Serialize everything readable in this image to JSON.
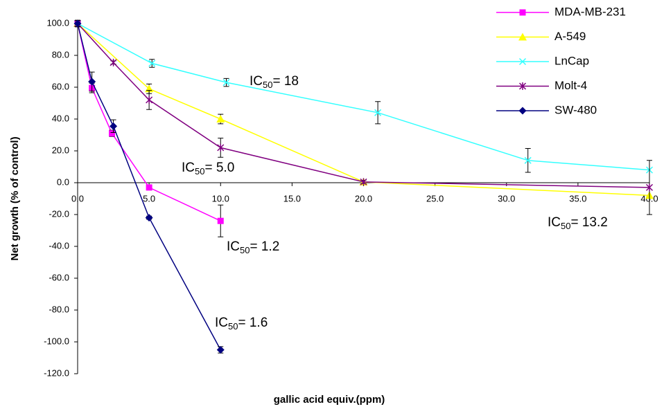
{
  "chart_data": {
    "type": "line",
    "x_label": "gallic acid equiv.(ppm)",
    "y_label": "Net growth (% of control)",
    "xlim": [
      0,
      40
    ],
    "ylim": [
      -120,
      100
    ],
    "xticks": [
      {
        "value": 0,
        "label": "0.0"
      },
      {
        "value": 5,
        "label": "5.0"
      },
      {
        "value": 10,
        "label": "10.0"
      },
      {
        "value": 15,
        "label": "15.0"
      },
      {
        "value": 20,
        "label": "20.0"
      },
      {
        "value": 25,
        "label": "25.0"
      },
      {
        "value": 30,
        "label": "30.0"
      },
      {
        "value": 35,
        "label": "35.0"
      },
      {
        "value": 40,
        "label": "40.0"
      }
    ],
    "yticks": [
      {
        "value": 100,
        "label": "100.0"
      },
      {
        "value": 80,
        "label": "80.0"
      },
      {
        "value": 60,
        "label": "60.0"
      },
      {
        "value": 40,
        "label": "40.0"
      },
      {
        "value": 20,
        "label": "20.0"
      },
      {
        "value": 0,
        "label": "0.0"
      },
      {
        "value": -20,
        "label": "-20.0"
      },
      {
        "value": -40,
        "label": "-40.0"
      },
      {
        "value": -60,
        "label": "-60.0"
      },
      {
        "value": -80,
        "label": "-80.0"
      },
      {
        "value": -100,
        "label": "-100.0"
      },
      {
        "value": -120,
        "label": "-120.0"
      }
    ],
    "grid": false,
    "legend": "top-right",
    "series": [
      {
        "name": "MDA-MB-231",
        "color": "#ff00ff",
        "marker": "square",
        "x": [
          0,
          1,
          2.4,
          5,
          10
        ],
        "values": [
          100,
          59.5,
          31,
          -3,
          -24
        ],
        "errors": [
          1,
          3,
          2,
          1,
          10
        ]
      },
      {
        "name": "A-549",
        "color": "#ffff00",
        "marker": "triangle",
        "x": [
          0,
          5,
          10,
          20,
          40
        ],
        "values": [
          100,
          59,
          40,
          0.5,
          -8
        ],
        "errors": [
          2,
          3,
          3,
          1,
          null
        ]
      },
      {
        "name": "LnCap",
        "color": "#33ffff",
        "marker": "x",
        "x": [
          0,
          5.2,
          10.4,
          21,
          31.5,
          40
        ],
        "values": [
          100,
          75,
          63,
          44,
          14,
          8
        ],
        "errors": [
          2,
          2.5,
          2.5,
          7,
          7.5,
          null
        ]
      },
      {
        "name": "Molt-4",
        "color": "#800080",
        "marker": "asterisk",
        "x": [
          0,
          2.5,
          5,
          10,
          20,
          40
        ],
        "values": [
          100,
          75.5,
          52,
          22,
          0.5,
          -3
        ],
        "errors": [
          2,
          1,
          6,
          6,
          1,
          17
        ]
      },
      {
        "name": "SW-480",
        "color": "#000080",
        "marker": "diamond",
        "x": [
          0,
          1,
          2.5,
          5,
          10
        ],
        "values": [
          100,
          63.5,
          35.5,
          -22,
          -105
        ],
        "errors": [
          2,
          6,
          4,
          1,
          2
        ]
      }
    ],
    "annotations": [
      {
        "label": "IC",
        "subscript": "50",
        "text": "= 18"
      },
      {
        "label": "IC",
        "subscript": "50",
        "text": "= 5.0"
      },
      {
        "label": "IC",
        "subscript": "50",
        "text": "= 13.2"
      },
      {
        "label": "IC",
        "subscript": "50",
        "text": "= 1.2"
      },
      {
        "label": "IC",
        "subscript": "50",
        "text": "= 1.6"
      }
    ]
  }
}
